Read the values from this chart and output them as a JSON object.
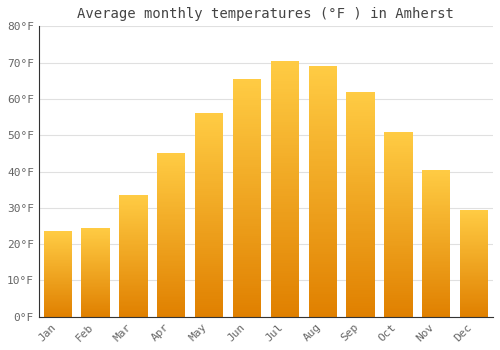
{
  "title": "Average monthly temperatures (°F ) in Amherst",
  "months": [
    "Jan",
    "Feb",
    "Mar",
    "Apr",
    "May",
    "Jun",
    "Jul",
    "Aug",
    "Sep",
    "Oct",
    "Nov",
    "Dec"
  ],
  "values": [
    23.5,
    24.5,
    33.5,
    45.0,
    56.0,
    65.5,
    70.5,
    69.0,
    62.0,
    51.0,
    40.5,
    29.5
  ],
  "bar_color_light": "#FFCC44",
  "bar_color_dark": "#E08000",
  "ylim": [
    0,
    80
  ],
  "yticks": [
    0,
    10,
    20,
    30,
    40,
    50,
    60,
    70,
    80
  ],
  "ytick_labels": [
    "0°F",
    "10°F",
    "20°F",
    "30°F",
    "40°F",
    "50°F",
    "60°F",
    "70°F",
    "80°F"
  ],
  "background_color": "#ffffff",
  "grid_color": "#e0e0e0",
  "title_fontsize": 10,
  "tick_fontsize": 8,
  "bar_width": 0.75,
  "spine_color": "#333333"
}
